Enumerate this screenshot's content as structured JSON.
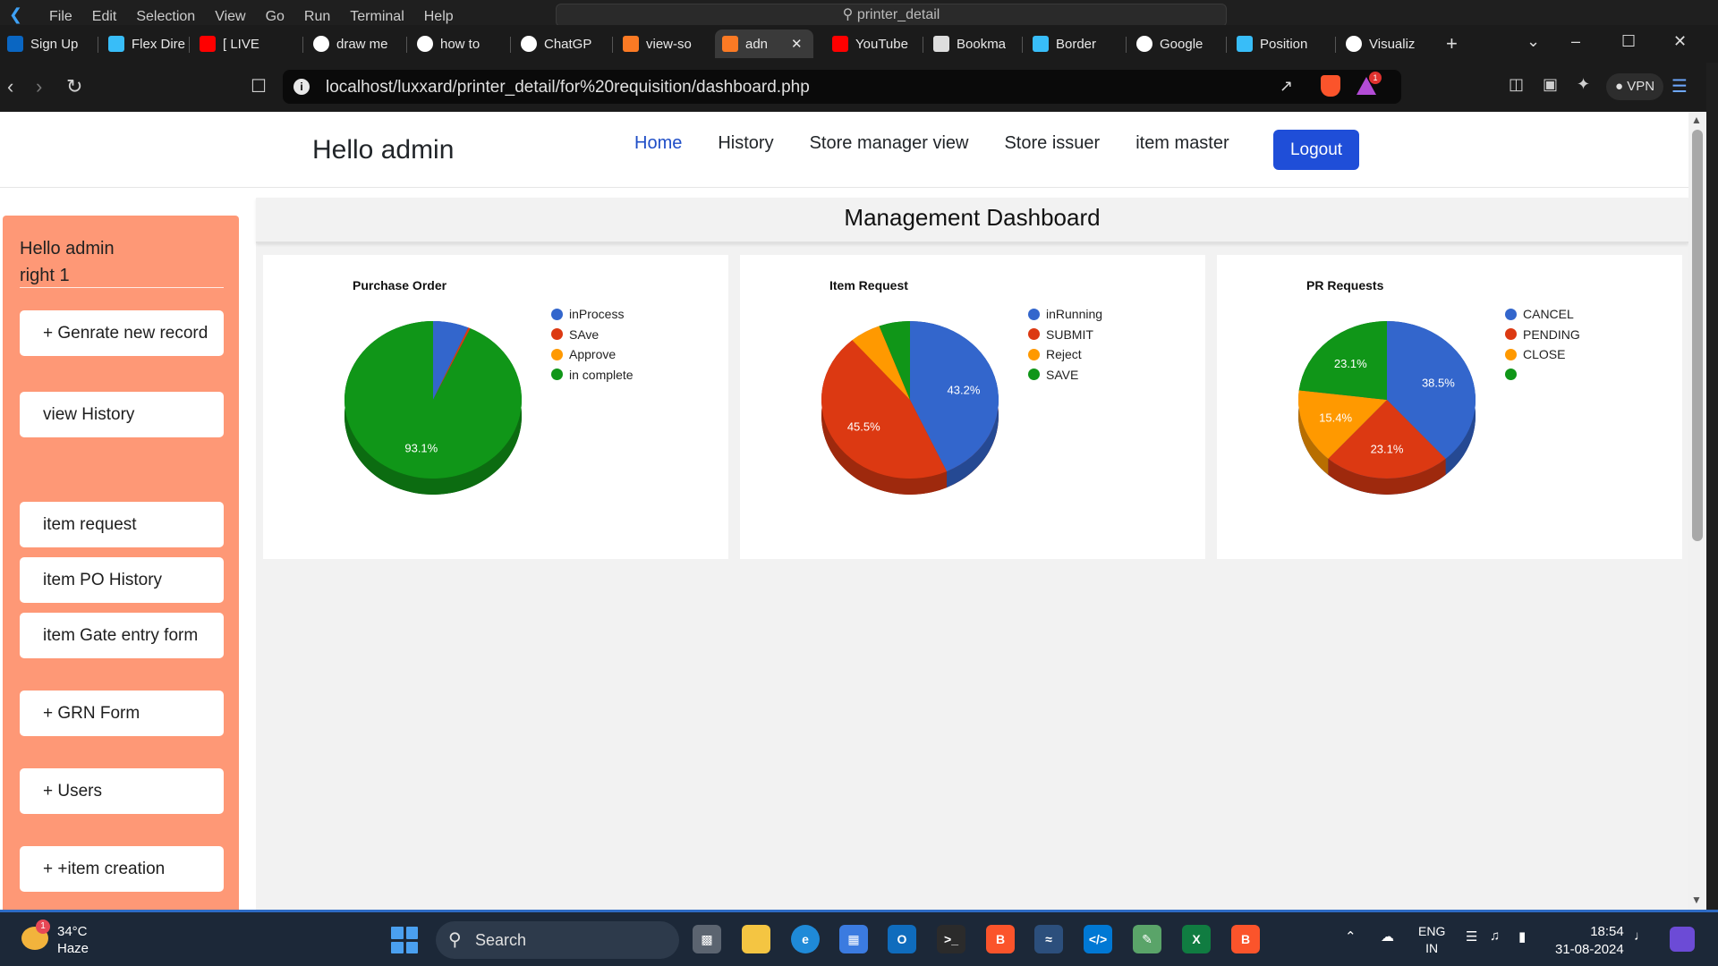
{
  "vscode": {
    "menus": [
      "File",
      "Edit",
      "Selection",
      "View",
      "Go",
      "Run",
      "Terminal",
      "Help"
    ],
    "command_center": "printer_detail"
  },
  "tabs": [
    {
      "label": "Sign Up",
      "icon": "linkedin-icon",
      "color": "#0a66c2"
    },
    {
      "label": "Flex Dire",
      "icon": "tailwind-icon",
      "color": "#38bdf8"
    },
    {
      "label": "[ LIVE",
      "icon": "youtube-icon",
      "color": "#ff0000"
    },
    {
      "label": "draw me",
      "icon": "google-icon",
      "color": "#ffffff"
    },
    {
      "label": "how to",
      "icon": "google-icon",
      "color": "#ffffff"
    },
    {
      "label": "ChatGP",
      "icon": "chatgpt-icon",
      "color": "#ffffff"
    },
    {
      "label": "view-so",
      "icon": "xampp-icon",
      "color": "#fb7a24"
    },
    {
      "label": "adn",
      "icon": "xampp-icon",
      "color": "#fb7a24"
    },
    {
      "label": "YouTube",
      "icon": "youtube-icon",
      "color": "#ff0000"
    },
    {
      "label": "Bookma",
      "icon": "bookmark-icon",
      "color": "#dddddd"
    },
    {
      "label": "Border",
      "icon": "tailwind-icon",
      "color": "#38bdf8"
    },
    {
      "label": "Google",
      "icon": "google-icon",
      "color": "#ffffff"
    },
    {
      "label": "Position",
      "icon": "tailwind-icon",
      "color": "#38bdf8"
    },
    {
      "label": "Visualiz",
      "icon": "google-icon",
      "color": "#ffffff"
    }
  ],
  "address_bar": {
    "url": "localhost/luxxard/printer_detail/for%20requisition/dashboard.php",
    "vpn_label": "VPN",
    "notification_count": "1"
  },
  "header": {
    "brand": "Hello admin",
    "nav": [
      "Home",
      "History",
      "Store manager view",
      "Store issuer",
      "item master"
    ],
    "logout_label": "Logout"
  },
  "sidebar": {
    "greeting": "Hello admin",
    "role": "right 1",
    "buttons": [
      "+ Genrate new record",
      "view History",
      "item request",
      "item PO History",
      "item Gate entry form",
      "+ GRN Form",
      "+ Users",
      "+ +item creation"
    ]
  },
  "dashboard": {
    "title": "Management Dashboard"
  },
  "chart_data": [
    {
      "type": "pie",
      "title": "Purchase Order",
      "labels": [
        "inProcess",
        "SAve",
        "Approve",
        "in complete"
      ],
      "values": [
        6.5,
        0.4,
        0.0,
        93.1
      ],
      "colors": [
        "#3366cc",
        "#dc3912",
        "#ff9900",
        "#109618"
      ],
      "data_labels": [
        "",
        "",
        "",
        "93.1%"
      ]
    },
    {
      "type": "pie",
      "title": "Item Request",
      "labels": [
        "inRunning",
        "SUBMIT",
        "Reject",
        "SAVE"
      ],
      "values": [
        43.2,
        45.5,
        5.65,
        5.65
      ],
      "colors": [
        "#3366cc",
        "#dc3912",
        "#ff9900",
        "#109618"
      ],
      "data_labels": [
        "43.2%",
        "45.5%",
        "",
        ""
      ]
    },
    {
      "type": "pie",
      "title": "PR Requests",
      "labels": [
        "CANCEL",
        "PENDING",
        "CLOSE",
        ""
      ],
      "values": [
        38.5,
        23.1,
        15.4,
        23.1
      ],
      "colors": [
        "#3366cc",
        "#dc3912",
        "#ff9900",
        "#109618"
      ],
      "data_labels": [
        "38.5%",
        "23.1%",
        "15.4%",
        "23.1%"
      ]
    }
  ],
  "taskbar": {
    "weather_temp": "34°C",
    "weather_desc": "Haze",
    "weather_badge": "1",
    "search_placeholder": "Search",
    "lang_top": "ENG",
    "lang_bottom": "IN",
    "time": "18:54",
    "date": "31-08-2024"
  }
}
